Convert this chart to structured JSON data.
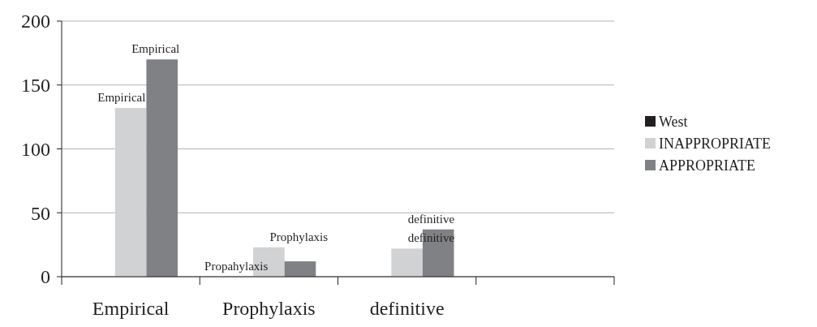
{
  "chart_data": {
    "type": "bar",
    "categories": [
      "Empirical",
      "Prophylaxis",
      "definitive",
      null
    ],
    "series": [
      {
        "name": "West",
        "color": "#231f20",
        "values": [
          0,
          0,
          0,
          null
        ]
      },
      {
        "name": "INAPPROPRIATE",
        "color": "#d1d2d4",
        "values": [
          132,
          23,
          22,
          null
        ]
      },
      {
        "name": "APPROPRIATE",
        "color": "#808184",
        "values": [
          170,
          12,
          37,
          null
        ]
      }
    ],
    "ylim": [
      0,
      200
    ],
    "yticks": [
      0,
      50,
      100,
      150,
      200
    ],
    "grid": "y",
    "legend": "right",
    "annotations": [
      {
        "text": "Empirical",
        "x": "Empirical",
        "y": 132
      },
      {
        "text": "Empirical",
        "y": 170
      },
      {
        "text": "Propahylaxis",
        "x": "Prophylaxis",
        "y": 0
      },
      {
        "text": "Prophylaxis",
        "x": "Prophylaxis",
        "y": 23
      },
      {
        "text": "definitive",
        "x": "definitive",
        "y": 22
      },
      {
        "text": "definitive",
        "y": 37
      }
    ]
  }
}
